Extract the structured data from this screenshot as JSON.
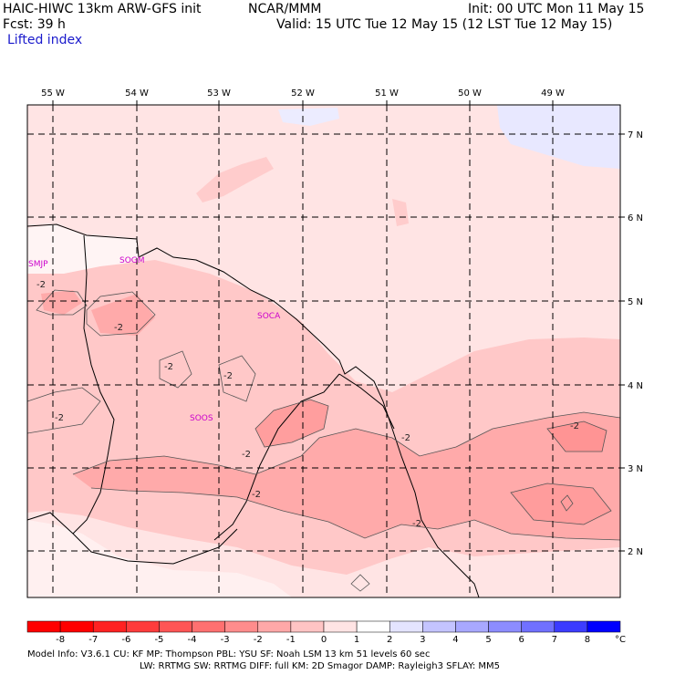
{
  "header": {
    "title": "HAIC-HIWC 13km ARW-GFS init",
    "org": "NCAR/MMM",
    "init": "Init: 00 UTC Mon 11 May 15",
    "fcst": "Fcst:   39 h",
    "valid": "Valid: 15 UTC Tue 12 May 15 (12 LST Tue 12 May 15)",
    "field": "Lifted index"
  },
  "axes": {
    "lon_labels": [
      "55 W",
      "54 W",
      "53 W",
      "52 W",
      "51 W",
      "50 W",
      "49 W"
    ],
    "lat_labels": [
      "7 N",
      "6 N",
      "5 N",
      "4 N",
      "3 N",
      "2 N"
    ]
  },
  "stations": [
    "SMJP",
    "SOGM",
    "SOCA",
    "SOOS"
  ],
  "contour_labels": [
    "-2",
    "-2",
    "-2",
    "-2",
    "-2",
    "-2",
    "-2",
    "-2",
    "-2",
    "-2"
  ],
  "colorbar": {
    "labels": [
      "-8",
      "-7",
      "-6",
      "-5",
      "-4",
      "-3",
      "-2",
      "-1",
      "0",
      "1",
      "2",
      "3",
      "4",
      "5",
      "6",
      "7",
      "8"
    ],
    "unit": "°C",
    "colors": [
      "#ff0000",
      "#ff2222",
      "#ff3c3c",
      "#ff5555",
      "#ff7070",
      "#ff8c8c",
      "#ffa8a8",
      "#ffc4c4",
      "#ffe4e4",
      "#ffffff",
      "#e4e4ff",
      "#c4c4ff",
      "#a8a8ff",
      "#8c8cff",
      "#7070ff",
      "#3c3cff",
      "#0000ff"
    ]
  },
  "footer": {
    "line1": "Model Info: V3.6.1     CU: KF        MP: Thompson     PBL: YSU       SF: Noah LSM      13 km    51 levels   60 sec",
    "line2": "LW: RRTMG    SW: RRTMG   DIFF: full    KM: 2D Smagor DAMP: Rayleigh3   SFLAY: MM5"
  }
}
